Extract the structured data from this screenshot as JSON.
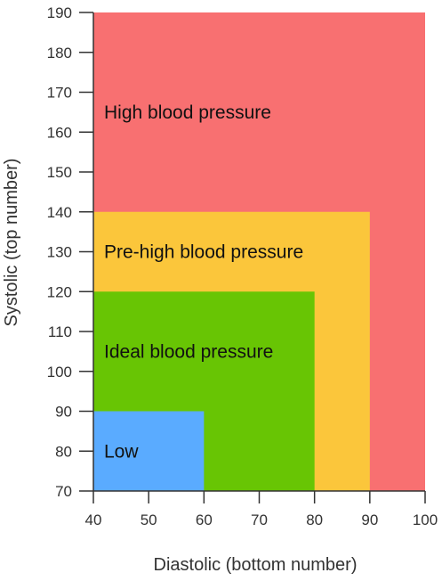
{
  "chart_data": {
    "type": "area",
    "title": "",
    "xlabel": "Diastolic (bottom number)",
    "ylabel": "Systolic (top number)",
    "xlim": [
      40,
      100
    ],
    "ylim": [
      70,
      190
    ],
    "x_ticks": [
      40,
      50,
      60,
      70,
      80,
      90,
      100
    ],
    "y_ticks": [
      70,
      80,
      90,
      100,
      110,
      120,
      130,
      140,
      150,
      160,
      170,
      180,
      190
    ],
    "grid": false,
    "legend": "none",
    "regions": [
      {
        "name": "High blood pressure",
        "x": [
          40,
          100
        ],
        "y": [
          70,
          190
        ],
        "color": "#f87071"
      },
      {
        "name": "Pre-high blood pressure",
        "x": [
          40,
          90
        ],
        "y": [
          70,
          140
        ],
        "color": "#fbc63b"
      },
      {
        "name": "Ideal blood pressure",
        "x": [
          40,
          80
        ],
        "y": [
          70,
          120
        ],
        "color": "#68c504"
      },
      {
        "name": "Low",
        "x": [
          40,
          60
        ],
        "y": [
          70,
          90
        ],
        "color": "#5aabff"
      }
    ]
  }
}
